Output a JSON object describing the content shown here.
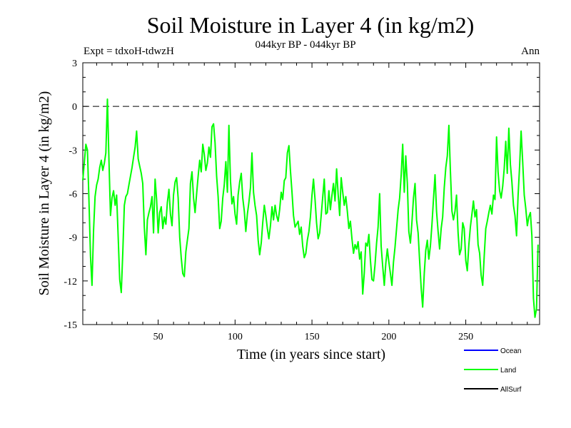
{
  "chart_data": {
    "type": "line",
    "title": "Soil Moisture in Layer 4 (in kg/m2)",
    "subtitle": "044kyr BP - 044kyr BP",
    "experiment": "Expt = tdxoH-tdwzH",
    "season": "Ann",
    "xlabel": "Time (in years since start)",
    "ylabel": "Soil Moisture in Layer 4 (in kg/m2)",
    "xlim": [
      1,
      298
    ],
    "ylim": [
      -15,
      3
    ],
    "x_ticks": [
      50,
      100,
      150,
      200,
      250
    ],
    "y_ticks": [
      3,
      0,
      -3,
      -6,
      -9,
      -12,
      -15
    ],
    "reference_line": 0,
    "legend": [
      "Ocean",
      "Land",
      "AllSurf"
    ],
    "legend_colors": [
      "#0000ff",
      "#00ff00",
      "#000000"
    ],
    "series": [
      {
        "name": "Land",
        "color": "#00ff00",
        "x_start": 1,
        "values": [
          -5.1,
          -3.8,
          -2.6,
          -3.0,
          -6.4,
          -10.3,
          -12.3,
          -8.5,
          -6.2,
          -5.4,
          -5.0,
          -4.2,
          -3.7,
          -4.4,
          -3.9,
          -3.2,
          0.5,
          -3.6,
          -7.5,
          -6.3,
          -5.8,
          -6.8,
          -6.1,
          -9.0,
          -11.9,
          -12.8,
          -10.1,
          -6.8,
          -6.2,
          -6.0,
          -5.4,
          -4.8,
          -4.2,
          -3.5,
          -2.8,
          -1.7,
          -3.6,
          -4.1,
          -4.6,
          -5.3,
          -8.3,
          -10.2,
          -7.8,
          -7.3,
          -6.9,
          -6.2,
          -8.7,
          -5.0,
          -6.4,
          -8.7,
          -7.3,
          -6.9,
          -8.4,
          -7.6,
          -8.1,
          -6.6,
          -5.7,
          -7.4,
          -8.2,
          -6.1,
          -5.2,
          -4.9,
          -6.3,
          -9.0,
          -10.4,
          -11.5,
          -11.7,
          -10.0,
          -9.2,
          -8.4,
          -5.3,
          -4.5,
          -6.3,
          -7.3,
          -6.0,
          -4.8,
          -3.7,
          -4.5,
          -2.6,
          -3.3,
          -4.4,
          -3.9,
          -2.8,
          -3.5,
          -1.4,
          -1.2,
          -2.5,
          -4.8,
          -6.2,
          -8.4,
          -7.9,
          -6.3,
          -5.4,
          -3.8,
          -5.9,
          -1.3,
          -5.1,
          -6.7,
          -6.2,
          -7.4,
          -8.1,
          -6.1,
          -5.2,
          -4.6,
          -6.3,
          -7.2,
          -8.6,
          -7.4,
          -6.6,
          -5.6,
          -3.2,
          -5.9,
          -6.8,
          -7.5,
          -9.2,
          -10.2,
          -9.4,
          -8.0,
          -6.8,
          -7.5,
          -8.4,
          -9.1,
          -8.2,
          -6.9,
          -7.8,
          -6.8,
          -7.5,
          -7.9,
          -7.1,
          -5.9,
          -6.4,
          -5.1,
          -4.9,
          -3.2,
          -2.7,
          -4.4,
          -5.9,
          -7.5,
          -8.3,
          -8.1,
          -7.9,
          -8.8,
          -8.3,
          -9.6,
          -10.4,
          -10.1,
          -9.2,
          -8.6,
          -7.6,
          -6.1,
          -5.0,
          -6.4,
          -8.0,
          -9.1,
          -8.7,
          -7.5,
          -6.2,
          -5.0,
          -7.4,
          -7.3,
          -5.8,
          -7.1,
          -6.1,
          -5.3,
          -6.5,
          -4.3,
          -6.0,
          -7.5,
          -4.9,
          -5.9,
          -6.8,
          -6.2,
          -7.2,
          -8.4,
          -7.9,
          -9.1,
          -10.1,
          -9.5,
          -9.8,
          -9.3,
          -10.5,
          -10.0,
          -12.9,
          -11.5,
          -9.4,
          -9.6,
          -8.8,
          -10.6,
          -11.9,
          -12.0,
          -10.9,
          -9.4,
          -8.3,
          -6.0,
          -9.6,
          -11.0,
          -12.3,
          -10.8,
          -9.8,
          -10.7,
          -11.5,
          -12.3,
          -10.7,
          -9.7,
          -8.4,
          -7.1,
          -6.3,
          -4.7,
          -2.6,
          -5.9,
          -3.4,
          -5.3,
          -8.6,
          -9.4,
          -8.0,
          -6.3,
          -5.3,
          -7.8,
          -8.7,
          -10.6,
          -12.5,
          -13.8,
          -11.5,
          -9.9,
          -9.2,
          -10.5,
          -9.6,
          -8.1,
          -6.4,
          -4.7,
          -7.2,
          -8.6,
          -9.8,
          -8.4,
          -7.6,
          -5.6,
          -4.2,
          -3.4,
          -1.3,
          -4.4,
          -7.2,
          -7.8,
          -7.2,
          -6.1,
          -8.7,
          -10.2,
          -9.8,
          -8.0,
          -8.4,
          -10.6,
          -11.3,
          -9.5,
          -8.3,
          -7.4,
          -6.5,
          -7.6,
          -7.1,
          -9.5,
          -10.1,
          -11.6,
          -12.3,
          -10.3,
          -8.4,
          -7.9,
          -7.3,
          -6.8,
          -7.4,
          -6.1,
          -6.4,
          -2.1,
          -4.5,
          -5.8,
          -6.3,
          -5.5,
          -4.3,
          -2.4,
          -4.6,
          -1.5,
          -4.0,
          -5.2,
          -6.8,
          -7.5,
          -8.9,
          -6.2,
          -4.1,
          -1.7,
          -3.8,
          -6.1,
          -7.0,
          -8.2,
          -7.6,
          -7.3,
          -8.9,
          -13.2,
          -14.5,
          -13.9,
          -9.5
        ]
      }
    ]
  }
}
